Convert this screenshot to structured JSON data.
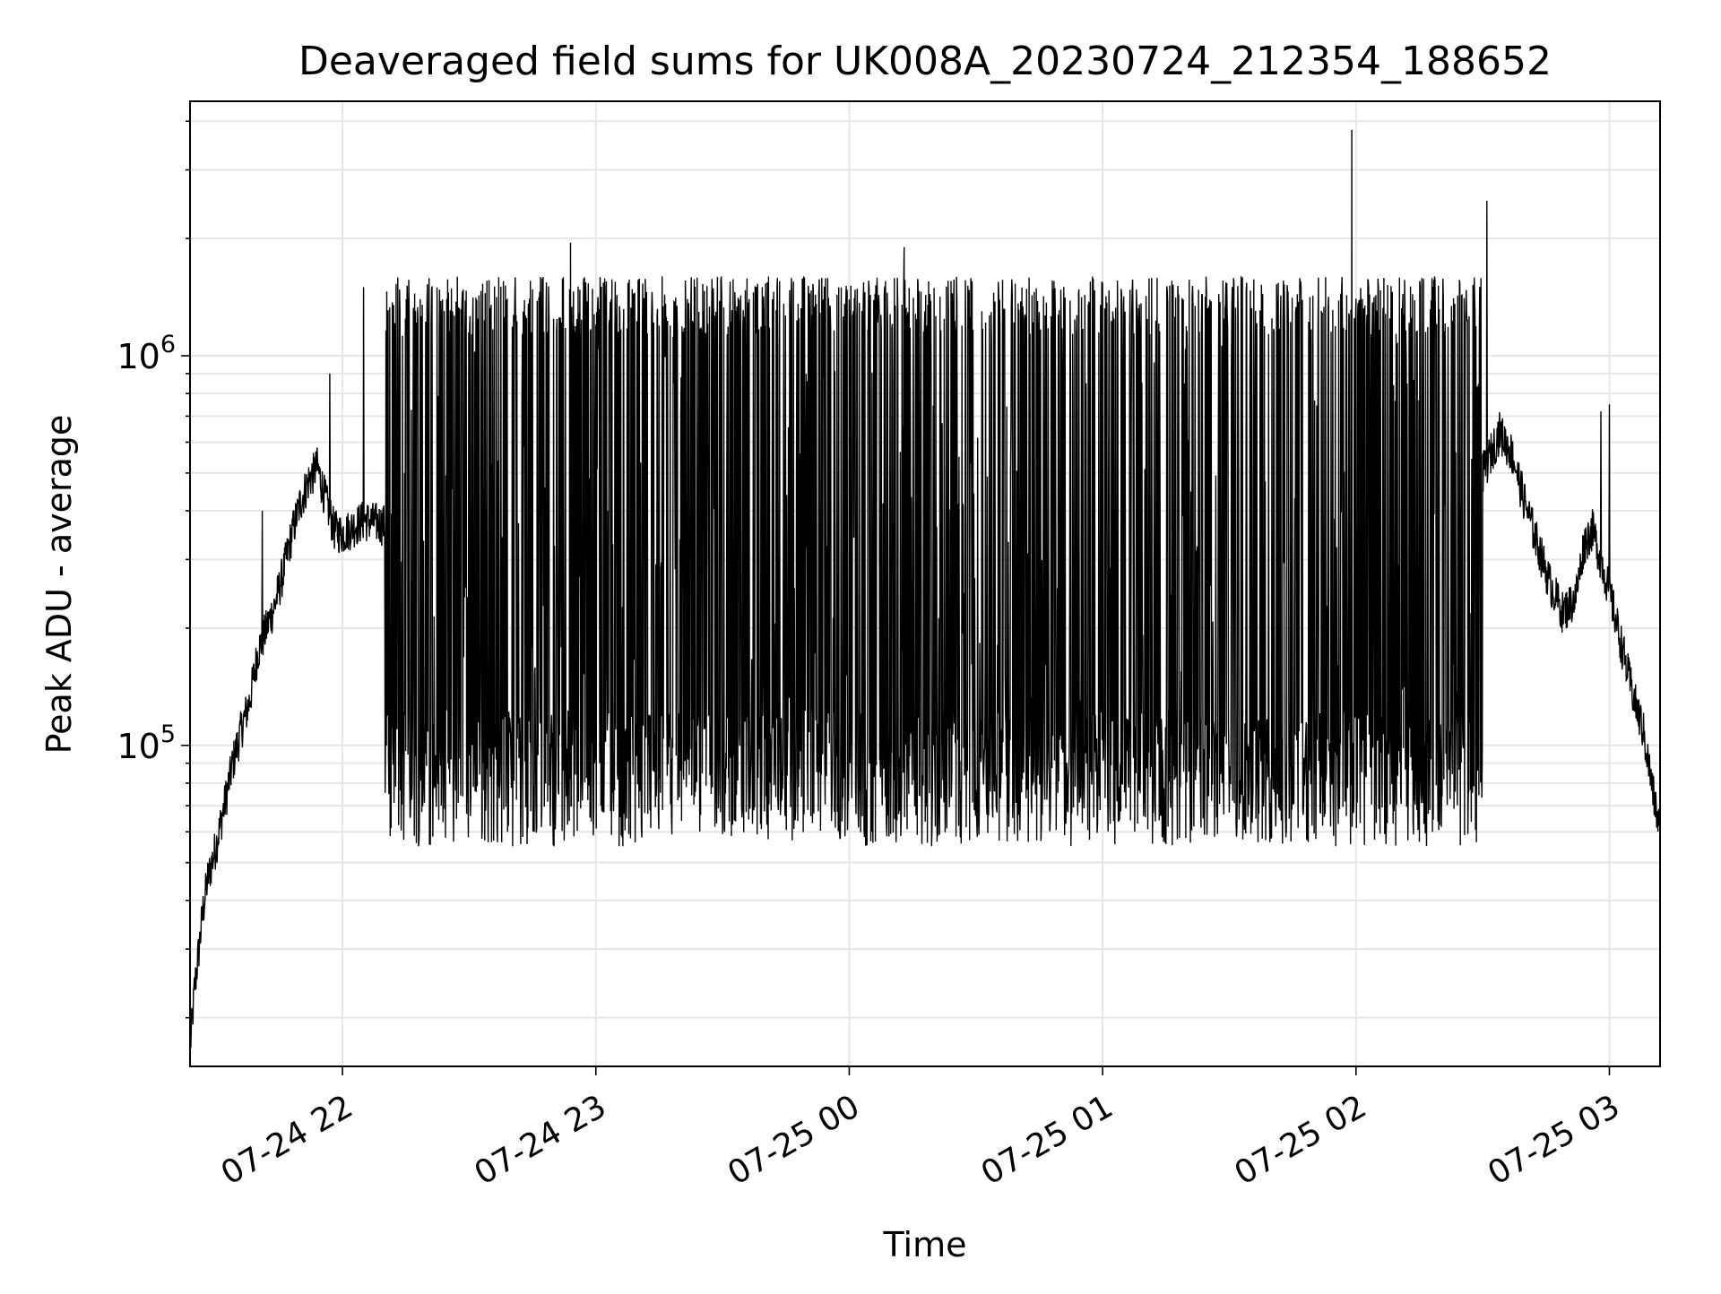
{
  "chart_data": {
    "type": "line",
    "title": "Deaveraged field sums for UK008A_20230724_212354_188652",
    "xlabel": "Time",
    "ylabel": "Peak ADU - average",
    "yscale": "log",
    "ylim": [
      15000,
      4500000
    ],
    "xlim": [
      "2023-07-24 21:23:54",
      "2023-07-25 03:12:00"
    ],
    "grid": true,
    "line_color": "#000000",
    "grid_color": "#e6e6e6",
    "x_ticks": [
      {
        "time": "2023-07-24 22:00",
        "label": "07-24 22"
      },
      {
        "time": "2023-07-24 23:00",
        "label": "07-24 23"
      },
      {
        "time": "2023-07-25 00:00",
        "label": "07-25 00"
      },
      {
        "time": "2023-07-25 01:00",
        "label": "07-25 01"
      },
      {
        "time": "2023-07-25 02:00",
        "label": "07-25 02"
      },
      {
        "time": "2023-07-25 03:00",
        "label": "07-25 03"
      }
    ],
    "y_ticks": [
      {
        "value": 100000,
        "base": "10",
        "exp": "5"
      },
      {
        "value": 1000000,
        "base": "10",
        "exp": "6"
      }
    ],
    "series": [
      {
        "color": "#000000",
        "points": [
          [
            "2023-07-24 21:24",
            17000
          ],
          [
            "2023-07-24 21:25",
            24000
          ],
          [
            "2023-07-24 21:26",
            30000
          ],
          [
            "2023-07-24 21:27",
            38000
          ],
          [
            "2023-07-24 21:28",
            45000
          ],
          [
            "2023-07-24 21:30",
            55000
          ],
          [
            "2023-07-24 21:32",
            70000
          ],
          [
            "2023-07-24 21:34",
            90000
          ],
          [
            "2023-07-24 21:36",
            110000
          ],
          [
            "2023-07-24 21:38",
            130000
          ],
          [
            "2023-07-24 21:40",
            175000
          ],
          [
            "2023-07-24 21:42",
            200000
          ],
          [
            "2023-07-24 21:44",
            230000
          ],
          [
            "2023-07-24 21:46",
            280000
          ],
          [
            "2023-07-24 21:48",
            350000
          ],
          [
            "2023-07-24 21:50",
            420000
          ],
          [
            "2023-07-24 21:52",
            480000
          ],
          [
            "2023-07-24 21:54",
            520000
          ],
          [
            "2023-07-24 21:56",
            430000
          ],
          [
            "2023-07-24 21:58",
            360000
          ],
          [
            "2023-07-24 22:00",
            350000
          ],
          [
            "2023-07-24 22:05",
            380000
          ],
          [
            "2023-07-24 22:10",
            370000
          ],
          [
            "2023-07-24 22:13",
            320000
          ],
          [
            "2023-07-24 22:16",
            250000
          ],
          [
            "2023-07-24 22:19",
            180000
          ],
          [
            "2023-07-24 22:22",
            140000
          ],
          [
            "2023-07-24 22:26",
            110000
          ],
          [
            "2023-07-24 22:30",
            90000
          ],
          [
            "2023-07-24 22:40",
            70000
          ],
          [
            "2023-07-24 22:50",
            62000
          ],
          [
            "2023-07-24 23:00",
            60000
          ],
          [
            "2023-07-24 23:30",
            56000
          ],
          [
            "2023-07-25 00:00",
            55000
          ],
          [
            "2023-07-25 00:30",
            55000
          ],
          [
            "2023-07-25 01:00",
            56000
          ],
          [
            "2023-07-25 01:20",
            60000
          ],
          [
            "2023-07-25 01:40",
            65000
          ],
          [
            "2023-07-25 02:00",
            72000
          ],
          [
            "2023-07-25 02:15",
            85000
          ],
          [
            "2023-07-25 02:25",
            160000
          ],
          [
            "2023-07-25 02:30",
            500000
          ],
          [
            "2023-07-25 02:34",
            640000
          ],
          [
            "2023-07-25 02:37",
            560000
          ],
          [
            "2023-07-25 02:40",
            420000
          ],
          [
            "2023-07-25 02:43",
            330000
          ],
          [
            "2023-07-25 02:46",
            260000
          ],
          [
            "2023-07-25 02:49",
            220000
          ],
          [
            "2023-07-25 02:52",
            240000
          ],
          [
            "2023-07-25 02:54",
            330000
          ],
          [
            "2023-07-25 02:56",
            360000
          ],
          [
            "2023-07-25 02:58",
            300000
          ],
          [
            "2023-07-25 03:00",
            250000
          ],
          [
            "2023-07-25 03:02",
            200000
          ],
          [
            "2023-07-25 03:04",
            160000
          ],
          [
            "2023-07-25 03:06",
            130000
          ],
          [
            "2023-07-25 03:08",
            110000
          ],
          [
            "2023-07-25 03:10",
            80000
          ],
          [
            "2023-07-25 03:12",
            60000
          ]
        ],
        "band": {
          "start": "2023-07-24 22:10",
          "end": "2023-07-25 02:30",
          "lower": 55000,
          "upper": 1600000,
          "description_free": true
        },
        "spikes": [
          [
            "2023-07-24 21:41",
            400000
          ],
          [
            "2023-07-24 21:57",
            900000
          ],
          [
            "2023-07-24 22:05",
            1500000
          ],
          [
            "2023-07-24 22:54",
            1950000
          ],
          [
            "2023-07-25 00:13",
            1900000
          ],
          [
            "2023-07-25 01:59",
            3800000
          ],
          [
            "2023-07-25 02:31",
            2500000
          ],
          [
            "2023-07-25 02:58",
            720000
          ],
          [
            "2023-07-25 03:00",
            750000
          ]
        ]
      }
    ]
  }
}
